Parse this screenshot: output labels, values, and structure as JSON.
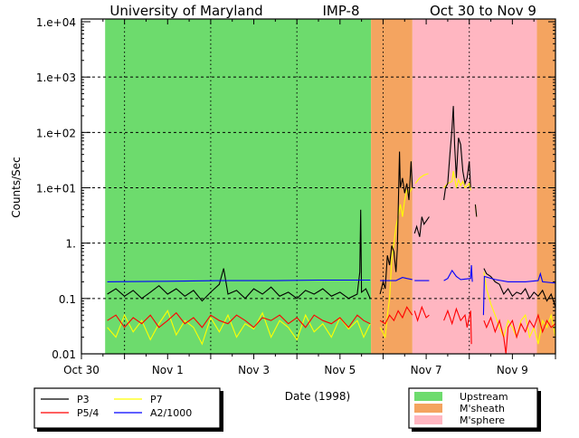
{
  "chart_data": {
    "type": "line",
    "title": {
      "left": "University of Maryland",
      "mid": "IMP-8",
      "right": "Oct 30 to Nov 9"
    },
    "xlabel": "Date (1998)",
    "ylabel": "Counts/Sec",
    "yscale": "log",
    "ylim": [
      0.01,
      10000
    ],
    "xlim_days_from_oct30": [
      0,
      11
    ],
    "x_ticks": [
      {
        "day": 0,
        "label": "Oct 30"
      },
      {
        "day": 2,
        "label": "Nov 1"
      },
      {
        "day": 4,
        "label": "Nov 3"
      },
      {
        "day": 6,
        "label": "Nov 5"
      },
      {
        "day": 8,
        "label": "Nov 7"
      },
      {
        "day": 10,
        "label": "Nov 9"
      }
    ],
    "y_ticks": [
      {
        "value": 10000,
        "label": "1.e+04"
      },
      {
        "value": 1000,
        "label": "1.e+03"
      },
      {
        "value": 100,
        "label": "1.e+02"
      },
      {
        "value": 10,
        "label": "1.e+01"
      },
      {
        "value": 1,
        "label": "1."
      },
      {
        "value": 0.1,
        "label": "0.1"
      },
      {
        "value": 0.01,
        "label": "0.01"
      }
    ],
    "grid": true,
    "regions": [
      {
        "name": "Upstream",
        "from": 0.55,
        "to": 6.72,
        "color": "#6ddb6d"
      },
      {
        "name": "M'sheath",
        "from": 6.72,
        "to": 7.68,
        "color": "#f4a460"
      },
      {
        "name": "M'sphere",
        "from": 7.68,
        "to": 10.57,
        "color": "#ffb6c1"
      },
      {
        "name": "M'sheath",
        "from": 10.57,
        "to": 11.0,
        "color": "#f4a460"
      }
    ],
    "region_legend": [
      {
        "label": "Upstream",
        "color": "#6ddb6d"
      },
      {
        "label": "M'sheath",
        "color": "#f4a460"
      },
      {
        "label": "M'sphere",
        "color": "#ffb6c1"
      }
    ],
    "series": [
      {
        "name": "P7",
        "color": "#ffff00",
        "points": [
          [
            0.6,
            0.03
          ],
          [
            0.8,
            0.02
          ],
          [
            1.0,
            0.05
          ],
          [
            1.2,
            0.025
          ],
          [
            1.4,
            0.04
          ],
          [
            1.6,
            0.018
          ],
          [
            1.8,
            0.035
          ],
          [
            2.0,
            0.06
          ],
          [
            2.2,
            0.022
          ],
          [
            2.4,
            0.04
          ],
          [
            2.6,
            0.03
          ],
          [
            2.8,
            0.015
          ],
          [
            3.0,
            0.045
          ],
          [
            3.2,
            0.025
          ],
          [
            3.4,
            0.05
          ],
          [
            3.6,
            0.02
          ],
          [
            3.8,
            0.035
          ],
          [
            4.0,
            0.028
          ],
          [
            4.2,
            0.055
          ],
          [
            4.4,
            0.02
          ],
          [
            4.6,
            0.04
          ],
          [
            4.8,
            0.03
          ],
          [
            5.0,
            0.018
          ],
          [
            5.2,
            0.05
          ],
          [
            5.4,
            0.025
          ],
          [
            5.6,
            0.035
          ],
          [
            5.8,
            0.02
          ],
          [
            6.0,
            0.045
          ],
          [
            6.2,
            0.028
          ],
          [
            6.4,
            0.04
          ],
          [
            6.55,
            0.02
          ],
          [
            6.7,
            0.035
          ],
          null,
          [
            6.93,
            0.03
          ],
          [
            7.05,
            0.02
          ],
          [
            7.1,
            0.05
          ],
          [
            7.15,
            0.1
          ],
          [
            7.2,
            0.5
          ],
          [
            7.25,
            1
          ],
          [
            7.3,
            2
          ],
          [
            7.35,
            3
          ],
          [
            7.4,
            5
          ],
          [
            7.45,
            3
          ],
          [
            7.5,
            6
          ],
          [
            7.55,
            9
          ],
          [
            7.6,
            8
          ],
          [
            7.68,
            10
          ],
          null,
          [
            7.75,
            12
          ],
          [
            7.85,
            15
          ],
          [
            7.95,
            17
          ],
          [
            8.05,
            18
          ],
          null,
          [
            8.41,
            10
          ],
          [
            8.5,
            12
          ],
          [
            8.6,
            13
          ],
          [
            8.63,
            20
          ],
          [
            8.7,
            10
          ],
          [
            8.75,
            14
          ],
          [
            8.8,
            11
          ],
          [
            8.85,
            13
          ],
          [
            8.9,
            10
          ],
          [
            9.0,
            12
          ],
          [
            9.03,
            9
          ],
          null,
          [
            9.14,
            5
          ],
          [
            9.17,
            3
          ],
          null,
          [
            9.34,
            0.3
          ],
          [
            9.4,
            0.15
          ],
          [
            9.5,
            0.08
          ],
          [
            9.6,
            0.05
          ],
          [
            9.7,
            0.03
          ],
          [
            9.8,
            0.02
          ],
          [
            9.9,
            0.04
          ],
          [
            10.0,
            0.03
          ],
          [
            10.1,
            0.02
          ],
          [
            10.2,
            0.04
          ],
          [
            10.3,
            0.05
          ],
          [
            10.4,
            0.02
          ],
          [
            10.5,
            0.03
          ],
          [
            10.6,
            0.015
          ],
          [
            10.7,
            0.04
          ],
          [
            10.8,
            0.03
          ],
          [
            10.9,
            0.05
          ],
          [
            11.0,
            0.02
          ]
        ]
      },
      {
        "name": "P5/4",
        "color": "#ff0000",
        "points": [
          [
            0.6,
            0.04
          ],
          [
            0.8,
            0.05
          ],
          [
            1.0,
            0.03
          ],
          [
            1.2,
            0.045
          ],
          [
            1.4,
            0.035
          ],
          [
            1.6,
            0.05
          ],
          [
            1.8,
            0.03
          ],
          [
            2.0,
            0.04
          ],
          [
            2.2,
            0.055
          ],
          [
            2.4,
            0.035
          ],
          [
            2.6,
            0.045
          ],
          [
            2.8,
            0.03
          ],
          [
            3.0,
            0.05
          ],
          [
            3.2,
            0.04
          ],
          [
            3.4,
            0.035
          ],
          [
            3.6,
            0.05
          ],
          [
            3.8,
            0.04
          ],
          [
            4.0,
            0.03
          ],
          [
            4.2,
            0.045
          ],
          [
            4.4,
            0.04
          ],
          [
            4.6,
            0.05
          ],
          [
            4.8,
            0.035
          ],
          [
            5.0,
            0.045
          ],
          [
            5.2,
            0.03
          ],
          [
            5.4,
            0.05
          ],
          [
            5.6,
            0.04
          ],
          [
            5.8,
            0.035
          ],
          [
            6.0,
            0.045
          ],
          [
            6.2,
            0.03
          ],
          [
            6.4,
            0.05
          ],
          [
            6.55,
            0.04
          ],
          [
            6.7,
            0.035
          ],
          null,
          [
            6.93,
            0.04
          ],
          [
            7.05,
            0.035
          ],
          [
            7.15,
            0.05
          ],
          [
            7.25,
            0.04
          ],
          [
            7.35,
            0.06
          ],
          [
            7.45,
            0.045
          ],
          [
            7.55,
            0.07
          ],
          [
            7.68,
            0.05
          ],
          null,
          [
            7.73,
            0.06
          ],
          [
            7.8,
            0.04
          ],
          [
            7.9,
            0.07
          ],
          [
            8.0,
            0.045
          ],
          [
            8.07,
            0.05
          ],
          null,
          [
            8.41,
            0.04
          ],
          [
            8.5,
            0.06
          ],
          [
            8.6,
            0.035
          ],
          [
            8.7,
            0.065
          ],
          [
            8.8,
            0.04
          ],
          [
            8.9,
            0.05
          ],
          [
            8.95,
            0.03
          ],
          [
            9.03,
            0.06
          ],
          [
            9.05,
            0.015
          ],
          null,
          [
            9.34,
            0.04
          ],
          [
            9.4,
            0.03
          ],
          [
            9.5,
            0.045
          ],
          [
            9.6,
            0.025
          ],
          [
            9.7,
            0.04
          ],
          [
            9.8,
            0.02
          ],
          [
            9.85,
            0.01
          ],
          [
            9.9,
            0.03
          ],
          [
            10.0,
            0.04
          ],
          [
            10.1,
            0.02
          ],
          [
            10.2,
            0.035
          ],
          [
            10.3,
            0.025
          ],
          [
            10.4,
            0.04
          ],
          [
            10.5,
            0.03
          ],
          [
            10.6,
            0.05
          ],
          [
            10.7,
            0.025
          ],
          [
            10.8,
            0.04
          ],
          [
            10.9,
            0.03
          ],
          [
            11.0,
            0.035
          ]
        ]
      },
      {
        "name": "P3",
        "color": "#000000",
        "points": [
          [
            0.6,
            0.12
          ],
          [
            0.8,
            0.15
          ],
          [
            1.0,
            0.11
          ],
          [
            1.2,
            0.14
          ],
          [
            1.4,
            0.1
          ],
          [
            1.6,
            0.13
          ],
          [
            1.8,
            0.17
          ],
          [
            2.0,
            0.12
          ],
          [
            2.2,
            0.15
          ],
          [
            2.4,
            0.11
          ],
          [
            2.6,
            0.14
          ],
          [
            2.8,
            0.09
          ],
          [
            3.0,
            0.13
          ],
          [
            3.2,
            0.18
          ],
          [
            3.3,
            0.35
          ],
          [
            3.4,
            0.12
          ],
          [
            3.6,
            0.14
          ],
          [
            3.8,
            0.1
          ],
          [
            4.0,
            0.15
          ],
          [
            4.2,
            0.12
          ],
          [
            4.4,
            0.16
          ],
          [
            4.6,
            0.11
          ],
          [
            4.8,
            0.13
          ],
          [
            5.0,
            0.1
          ],
          [
            5.2,
            0.14
          ],
          [
            5.4,
            0.12
          ],
          [
            5.6,
            0.15
          ],
          [
            5.8,
            0.11
          ],
          [
            6.0,
            0.13
          ],
          [
            6.2,
            0.1
          ],
          [
            6.4,
            0.12
          ],
          [
            6.46,
            0.3
          ],
          [
            6.48,
            4.0
          ],
          [
            6.5,
            0.13
          ],
          [
            6.6,
            0.15
          ],
          [
            6.7,
            0.1
          ],
          null,
          [
            6.93,
            0.12
          ],
          [
            7.0,
            0.2
          ],
          [
            7.05,
            0.15
          ],
          [
            7.1,
            0.6
          ],
          [
            7.15,
            0.4
          ],
          [
            7.2,
            0.9
          ],
          [
            7.25,
            0.7
          ],
          [
            7.3,
            0.3
          ],
          [
            7.33,
            0.8
          ],
          [
            7.38,
            45
          ],
          [
            7.4,
            10
          ],
          [
            7.45,
            15
          ],
          [
            7.5,
            8
          ],
          [
            7.55,
            12
          ],
          [
            7.6,
            6
          ],
          [
            7.65,
            30
          ],
          [
            7.68,
            10
          ],
          null,
          [
            7.73,
            1.5
          ],
          [
            7.78,
            2
          ],
          [
            7.85,
            1.3
          ],
          [
            7.9,
            3
          ],
          [
            7.95,
            2.2
          ],
          [
            8.0,
            2.5
          ],
          [
            8.07,
            3.0
          ],
          null,
          [
            8.41,
            6
          ],
          [
            8.45,
            10
          ],
          [
            8.5,
            12
          ],
          [
            8.55,
            40
          ],
          [
            8.6,
            120
          ],
          [
            8.63,
            300
          ],
          [
            8.66,
            60
          ],
          [
            8.7,
            15
          ],
          [
            8.75,
            80
          ],
          [
            8.8,
            60
          ],
          [
            8.85,
            20
          ],
          [
            8.9,
            12
          ],
          [
            8.95,
            15
          ],
          [
            9.0,
            30
          ],
          [
            9.03,
            10
          ],
          null,
          [
            9.14,
            5
          ],
          [
            9.17,
            3
          ],
          null,
          [
            9.34,
            0.35
          ],
          [
            9.4,
            0.28
          ],
          [
            9.5,
            0.25
          ],
          [
            9.6,
            0.2
          ],
          [
            9.7,
            0.18
          ],
          [
            9.8,
            0.12
          ],
          [
            9.9,
            0.15
          ],
          [
            10.0,
            0.11
          ],
          [
            10.1,
            0.13
          ],
          [
            10.2,
            0.12
          ],
          [
            10.3,
            0.15
          ],
          [
            10.4,
            0.1
          ],
          [
            10.5,
            0.13
          ],
          [
            10.6,
            0.11
          ],
          [
            10.7,
            0.14
          ],
          [
            10.8,
            0.09
          ],
          [
            10.9,
            0.12
          ],
          [
            11.0,
            0.07
          ]
        ]
      },
      {
        "name": "A2/1000",
        "color": "#0000ff",
        "points": [
          [
            0.6,
            0.2
          ],
          [
            2.0,
            0.205
          ],
          [
            3.2,
            0.21
          ],
          [
            4.5,
            0.21
          ],
          [
            5.5,
            0.215
          ],
          [
            6.7,
            0.215
          ],
          null,
          [
            6.93,
            0.21
          ],
          [
            7.3,
            0.21
          ],
          [
            7.35,
            0.22
          ],
          [
            7.45,
            0.24
          ],
          [
            7.55,
            0.23
          ],
          [
            7.68,
            0.22
          ],
          null,
          [
            7.73,
            0.21
          ],
          [
            8.07,
            0.21
          ],
          null,
          [
            8.41,
            0.21
          ],
          [
            8.5,
            0.23
          ],
          [
            8.6,
            0.32
          ],
          [
            8.7,
            0.25
          ],
          [
            8.8,
            0.22
          ],
          [
            9.03,
            0.23
          ],
          [
            9.05,
            0.4
          ],
          [
            9.07,
            0.2
          ],
          null,
          [
            9.33,
            0.05
          ],
          [
            9.35,
            0.25
          ],
          [
            9.6,
            0.22
          ],
          [
            9.9,
            0.2
          ],
          [
            10.3,
            0.2
          ],
          [
            10.6,
            0.21
          ],
          [
            10.65,
            0.28
          ],
          [
            10.7,
            0.2
          ],
          [
            11.0,
            0.19
          ]
        ]
      }
    ],
    "series_legend": [
      {
        "label": "P3",
        "color": "#000000"
      },
      {
        "label": "P5/4",
        "color": "#ff0000"
      },
      {
        "label": "P7",
        "color": "#ffff00"
      },
      {
        "label": "A2/1000",
        "color": "#0000ff"
      }
    ]
  }
}
